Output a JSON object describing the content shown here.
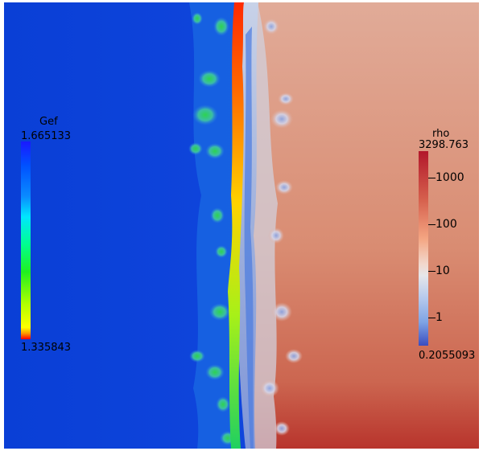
{
  "gef_legend": {
    "title": "Gef",
    "max_label": "1.665133",
    "min_label": "1.335843"
  },
  "rho_legend": {
    "title": "rho",
    "max_label": "3298.763",
    "min_label": "0.2055093",
    "ticks": [
      "1000",
      "100",
      "10",
      "1"
    ]
  },
  "colors": {
    "background_left": "#0a3fd6",
    "background_right": "#d98c72"
  }
}
